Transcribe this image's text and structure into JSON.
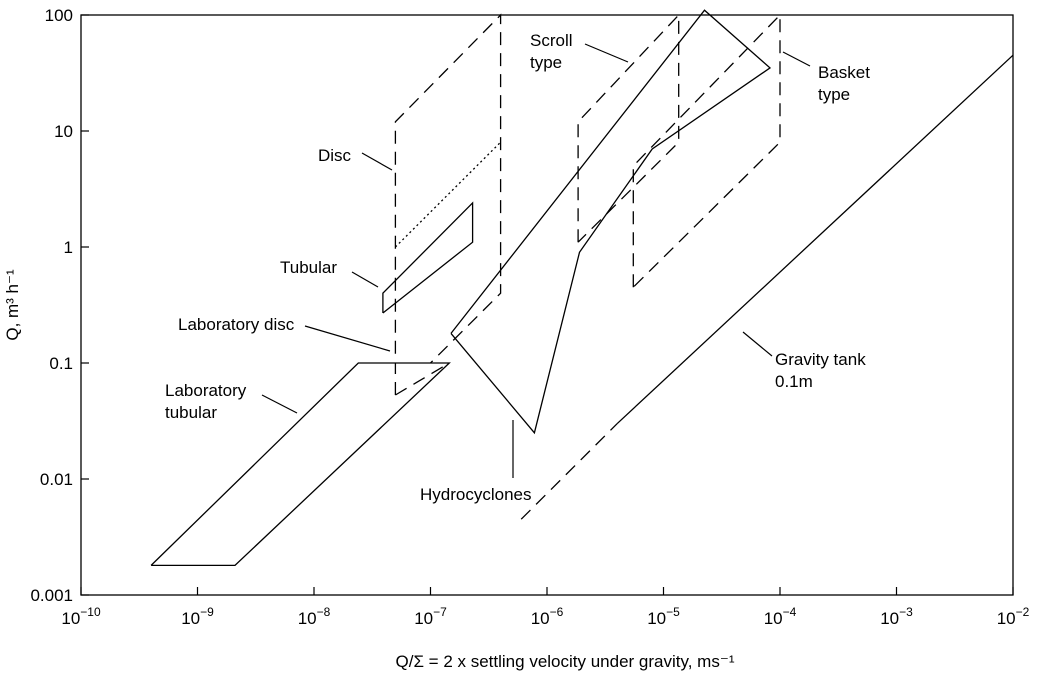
{
  "chart_data": {
    "type": "region-chart",
    "x_scale": "log",
    "y_scale": "log",
    "xlim": [
      1e-10,
      0.01
    ],
    "ylim": [
      0.001,
      100
    ],
    "grid": false,
    "xlabel": "Q/Σ =  2 x  settling velocity under gravity, ms⁻¹",
    "ylabel": "Q, m³ h⁻¹",
    "y_tick_labels": [
      "0.001",
      "0.01",
      "0.1",
      "1",
      "10",
      "100"
    ],
    "y_tick_values": [
      0.001,
      0.01,
      0.1,
      1,
      10,
      100
    ],
    "x_tick_values": [
      1e-10,
      1e-09,
      1e-08,
      1e-07,
      1e-06,
      1e-05,
      0.0001,
      0.001,
      0.01
    ],
    "x_tick_bases": [
      "10",
      "10",
      "10",
      "10",
      "10",
      "10",
      "10",
      "10",
      "10"
    ],
    "x_tick_exps": [
      "−10",
      "−9",
      "−8",
      "−7",
      "−6",
      "−5",
      "−4",
      "−3",
      "−2"
    ],
    "regions": [
      {
        "name": "Laboratory tubular",
        "style": "solid",
        "points": [
          [
            4e-10,
            0.0018
          ],
          [
            2.1e-09,
            0.0018
          ],
          [
            1.45e-07,
            0.1
          ],
          [
            2.4e-08,
            0.1
          ],
          [
            4e-10,
            0.0018
          ]
        ]
      },
      {
        "name": "Tubular",
        "style": "solid",
        "points": [
          [
            3.9e-08,
            0.27
          ],
          [
            2.3e-07,
            1.1
          ],
          [
            2.3e-07,
            2.4
          ],
          [
            3.9e-08,
            0.4
          ],
          [
            3.9e-08,
            0.27
          ]
        ]
      },
      {
        "name": "Laboratory disc",
        "style": "dash",
        "points": [
          [
            5e-08,
            0.053
          ],
          [
            5e-08,
            0.1
          ]
        ]
      },
      {
        "name": "Laboratory disc",
        "style": "dash",
        "points": [
          [
            5e-08,
            0.053
          ],
          [
            1.45e-07,
            0.1
          ]
        ]
      },
      {
        "name": "Disc",
        "style": "dash",
        "points": [
          [
            5e-08,
            0.12
          ],
          [
            5e-08,
            12
          ],
          [
            4e-07,
            100
          ],
          [
            4e-07,
            0.4
          ],
          [
            1e-07,
            0.1
          ]
        ]
      },
      {
        "name": "Disc",
        "style": "dot",
        "points": [
          [
            5e-08,
            1
          ],
          [
            4e-07,
            8
          ]
        ]
      },
      {
        "name": "Hydrocyclones",
        "style": "solid",
        "points": [
          [
            1.5e-07,
            0.18
          ],
          [
            7.8e-07,
            0.025
          ],
          [
            1.9e-06,
            0.9
          ],
          [
            8e-06,
            7
          ],
          [
            8.2e-05,
            35
          ],
          [
            2.25e-05,
            110
          ],
          [
            1.5e-07,
            0.18
          ]
        ]
      },
      {
        "name": "Scroll type",
        "style": "dash",
        "points": [
          [
            1.85e-06,
            1.1
          ],
          [
            1.85e-06,
            12
          ],
          [
            1.35e-05,
            100
          ],
          [
            1.35e-05,
            8
          ],
          [
            1.85e-06,
            1.1
          ]
        ]
      },
      {
        "name": "Basket type",
        "style": "dash",
        "points": [
          [
            5.5e-06,
            0.45
          ],
          [
            5.5e-06,
            5
          ],
          [
            0.0001,
            100
          ],
          [
            0.0001,
            8
          ],
          [
            5.5e-06,
            0.45
          ]
        ]
      },
      {
        "name": "Gravity tank 0.1m",
        "style": "dash",
        "points": [
          [
            6e-07,
            0.0045
          ],
          [
            4e-06,
            0.03
          ]
        ]
      },
      {
        "name": "Gravity tank 0.1m",
        "style": "solid",
        "points": [
          [
            4e-06,
            0.03
          ],
          [
            0.01,
            45
          ]
        ]
      }
    ],
    "annotations": [
      {
        "id": "scroll",
        "lines": [
          "Scroll",
          "type"
        ]
      },
      {
        "id": "basket",
        "lines": [
          "Basket",
          "type"
        ]
      },
      {
        "id": "disc",
        "lines": [
          "Disc"
        ]
      },
      {
        "id": "tubular",
        "lines": [
          "Tubular"
        ]
      },
      {
        "id": "labdisc",
        "lines": [
          "Laboratory disc"
        ]
      },
      {
        "id": "labtub",
        "lines": [
          "Laboratory",
          "tubular"
        ]
      },
      {
        "id": "gravity",
        "lines": [
          "Gravity tank",
          "0.1m"
        ]
      },
      {
        "id": "hydro",
        "lines": [
          "Hydrocyclones"
        ]
      }
    ]
  }
}
